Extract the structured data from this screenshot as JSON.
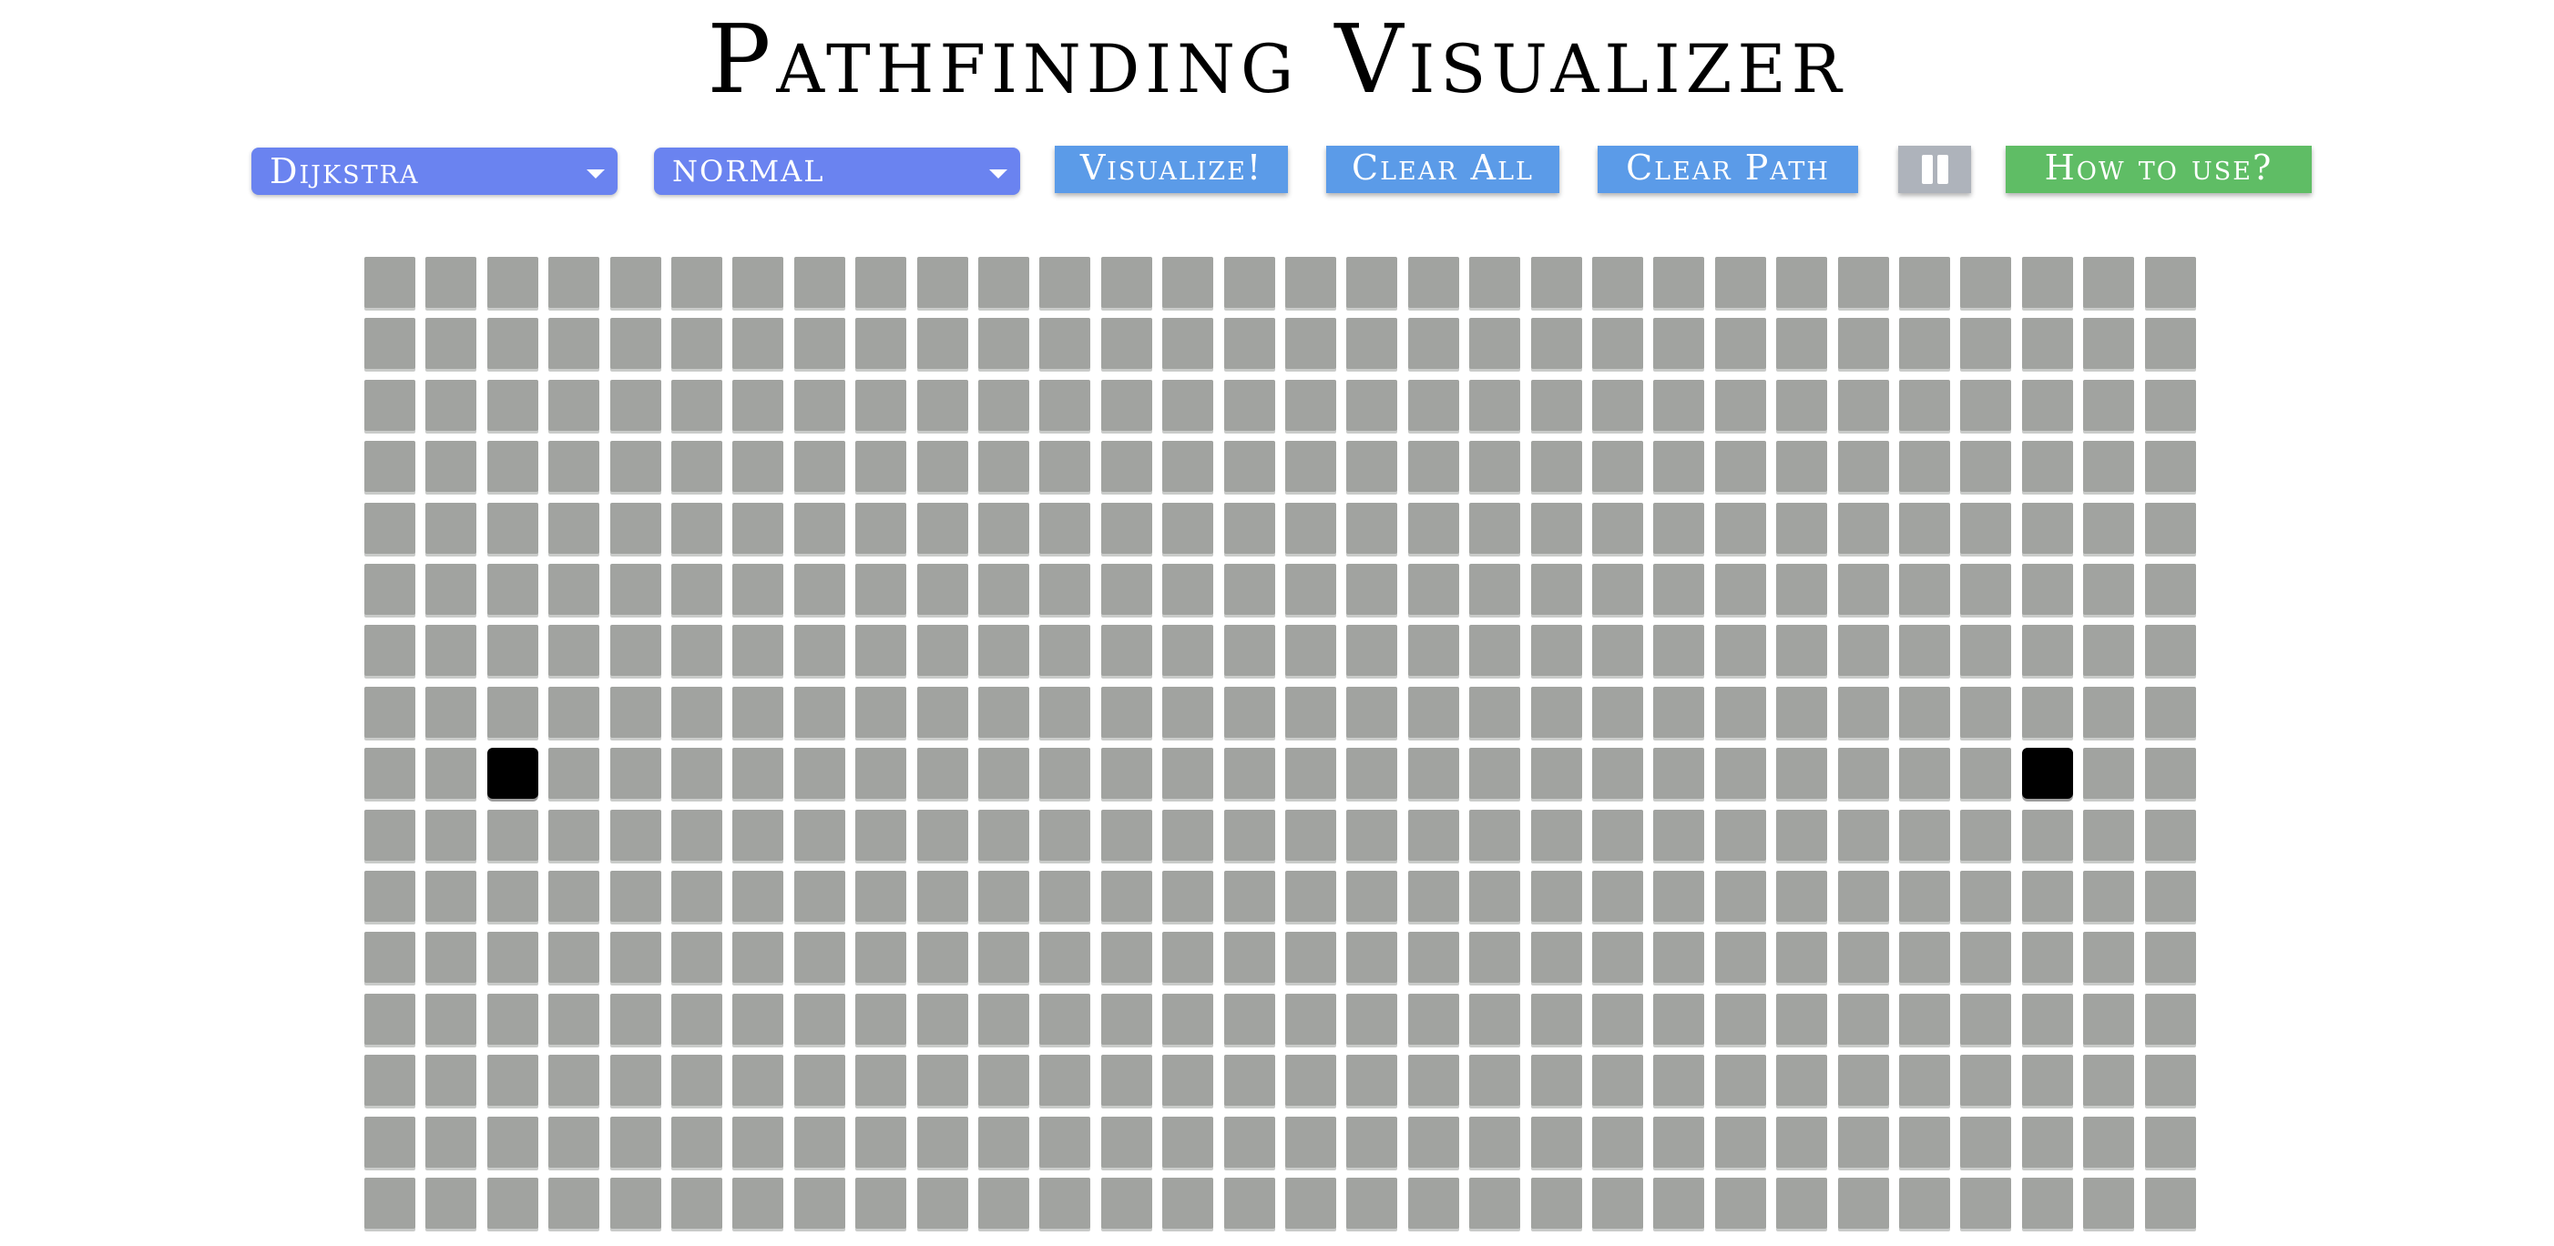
{
  "title": "Pathfinding Visualizer",
  "toolbar": {
    "algorithm": {
      "selected": "Dijkstra",
      "color": "#6a83f0"
    },
    "speed": {
      "selected": "NORMAL",
      "color": "#6a83f0"
    },
    "visualize_label": "Visualize!",
    "clear_all_label": "Clear All",
    "clear_path_label": "Clear Path",
    "pause_icon": "pause-icon",
    "help_label": "How to use?",
    "button_color": "#5b9be8",
    "help_color": "#5fbd65",
    "pause_color": "#aeb3bb"
  },
  "grid": {
    "rows": 16,
    "cols": 30,
    "cell_color": "#a1a3a0",
    "node_color": "#000000",
    "start_node": {
      "row": 8,
      "col": 2
    },
    "end_node": {
      "row": 8,
      "col": 27
    }
  }
}
